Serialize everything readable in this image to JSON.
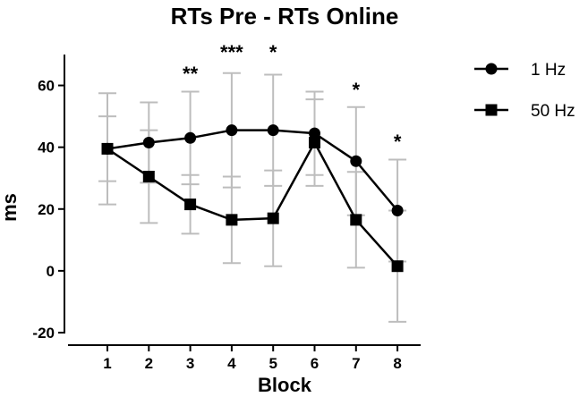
{
  "chart_data": {
    "type": "line",
    "title": "RTs Pre - RTs Online",
    "xlabel": "Block",
    "ylabel": "ms",
    "categories": [
      "1",
      "2",
      "3",
      "4",
      "5",
      "6",
      "7",
      "8"
    ],
    "ylim": [
      -20,
      70
    ],
    "yticks": [
      "-20",
      "0",
      "20",
      "40",
      "60"
    ],
    "legend_position": "right",
    "colors": {
      "series": "#000000",
      "error_bars": "#bdbdbd",
      "axes": "#000000"
    },
    "series": [
      {
        "name": "1 Hz",
        "marker": "circle",
        "values": [
          39.5,
          41.5,
          43.0,
          45.5,
          45.5,
          44.5,
          35.5,
          19.5
        ],
        "error": [
          18.0,
          13.0,
          15.0,
          18.5,
          18.0,
          13.5,
          17.5,
          16.5
        ]
      },
      {
        "name": "50 Hz",
        "marker": "square",
        "values": [
          39.5,
          30.5,
          21.5,
          16.5,
          17.0,
          41.5,
          16.5,
          1.5
        ],
        "error": [
          10.5,
          15.0,
          9.5,
          14.0,
          15.5,
          14.0,
          15.5,
          18.0
        ]
      }
    ],
    "annotations": [
      {
        "category": "3",
        "text": "**"
      },
      {
        "category": "4",
        "text": "***"
      },
      {
        "category": "5",
        "text": "*"
      },
      {
        "category": "7",
        "text": "*"
      },
      {
        "category": "8",
        "text": "*"
      }
    ]
  }
}
